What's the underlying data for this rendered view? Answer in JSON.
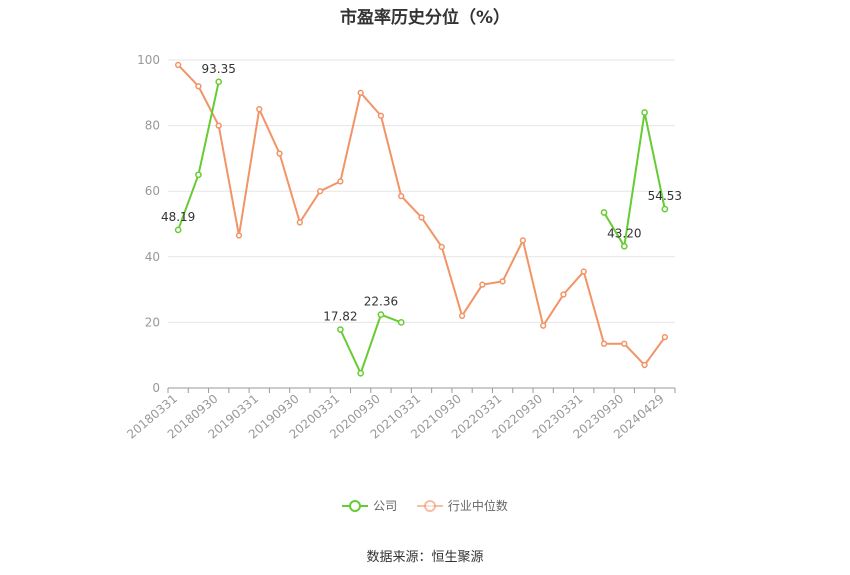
{
  "title": "市盈率历史分位（%）",
  "source": "数据来源：恒生聚源",
  "legend": {
    "company": "公司",
    "industry": "行业中位数"
  },
  "colors": {
    "company": "#66cc33",
    "industry": "#f29466",
    "grid": "#e6e6e6",
    "axis": "#999999",
    "tick_text": "#999999",
    "label_text": "#333333"
  },
  "chart_data": {
    "type": "line",
    "xlabel": "",
    "ylabel": "",
    "ylim": [
      0,
      100
    ],
    "yticks": [
      0,
      20,
      40,
      60,
      80,
      100
    ],
    "grid": true,
    "legend_position": "bottom",
    "x": [
      "20180331",
      "20180630",
      "20180930",
      "20181231",
      "20190331",
      "20190630",
      "20190930",
      "20191231",
      "20200331",
      "20200630",
      "20200930",
      "20201231",
      "20210331",
      "20210630",
      "20210930",
      "20211231",
      "20220331",
      "20220630",
      "20220930",
      "20221231",
      "20230331",
      "20230630",
      "20230930",
      "20231231",
      "20240429"
    ],
    "x_tick_labels": [
      "20180331",
      "20180930",
      "20190331",
      "20190930",
      "20200331",
      "20200930",
      "20210331",
      "20210930",
      "20220331",
      "20220930",
      "20230331",
      "20230930",
      "20240429"
    ],
    "series": [
      {
        "name": "公司",
        "key": "company",
        "values": [
          48.19,
          65,
          93.35,
          null,
          null,
          null,
          null,
          null,
          17.82,
          4.5,
          22.36,
          20,
          null,
          null,
          null,
          null,
          null,
          null,
          null,
          null,
          null,
          53.5,
          43.2,
          84,
          54.53
        ]
      },
      {
        "name": "行业中位数",
        "key": "industry",
        "values": [
          98.5,
          92,
          80,
          46.5,
          85,
          71.5,
          50.5,
          60,
          63,
          90,
          83,
          58.5,
          52,
          43,
          22,
          31.5,
          32.5,
          45,
          19,
          28.5,
          35.5,
          13.5,
          13.5,
          7,
          15.5
        ]
      }
    ],
    "data_labels": [
      {
        "series": "company",
        "index": 0,
        "text": "48.19"
      },
      {
        "series": "company",
        "index": 2,
        "text": "93.35"
      },
      {
        "series": "company",
        "index": 8,
        "text": "17.82"
      },
      {
        "series": "company",
        "index": 10,
        "text": "22.36"
      },
      {
        "series": "company",
        "index": 22,
        "text": "43.20"
      },
      {
        "series": "company",
        "index": 24,
        "text": "54.53"
      }
    ]
  }
}
